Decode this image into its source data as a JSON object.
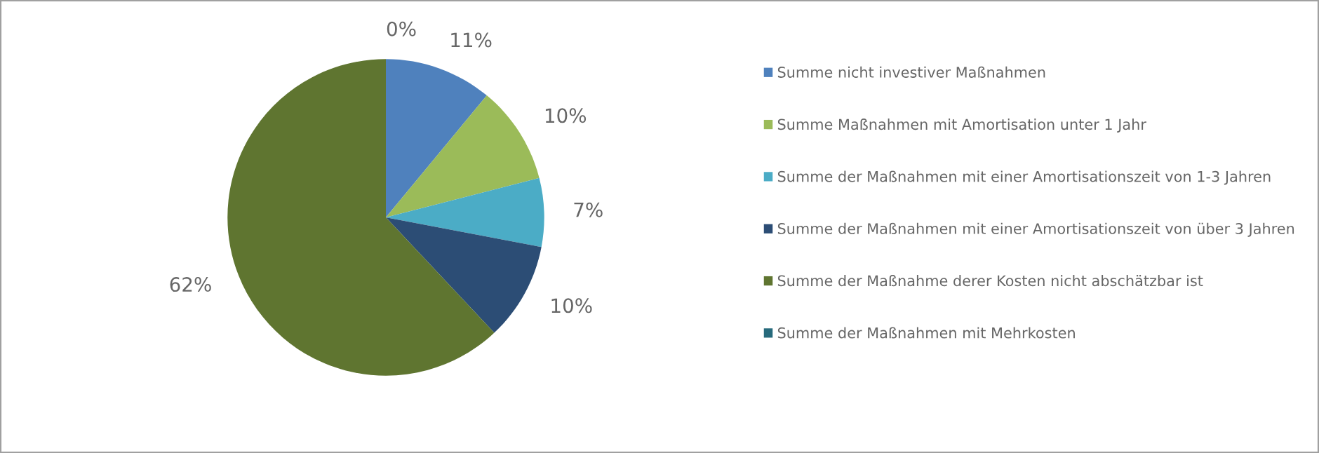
{
  "chart_data": {
    "type": "pie",
    "categories": [
      "Summe nicht investiver Maßnahmen",
      "Summe Maßnahmen mit Amortisation unter 1 Jahr",
      "Summe der Maßnahmen mit einer Amortisationszeit von 1-3 Jahren",
      "Summe der Maßnahmen mit einer Amortisationszeit von über 3 Jahren",
      "Summe der Maßnahme derer Kosten nicht abschätzbar ist",
      "Summe der Maßnahmen mit Mehrkosten"
    ],
    "values": [
      11,
      10,
      7,
      10,
      62,
      0
    ],
    "value_labels": [
      "11%",
      "10%",
      "7%",
      "10%",
      "62%",
      "0%"
    ],
    "colors": [
      "#4f81bd",
      "#9bbb59",
      "#4bacc6",
      "#2c4d75",
      "#5f7530",
      "#276a7c"
    ],
    "legend": "right"
  }
}
